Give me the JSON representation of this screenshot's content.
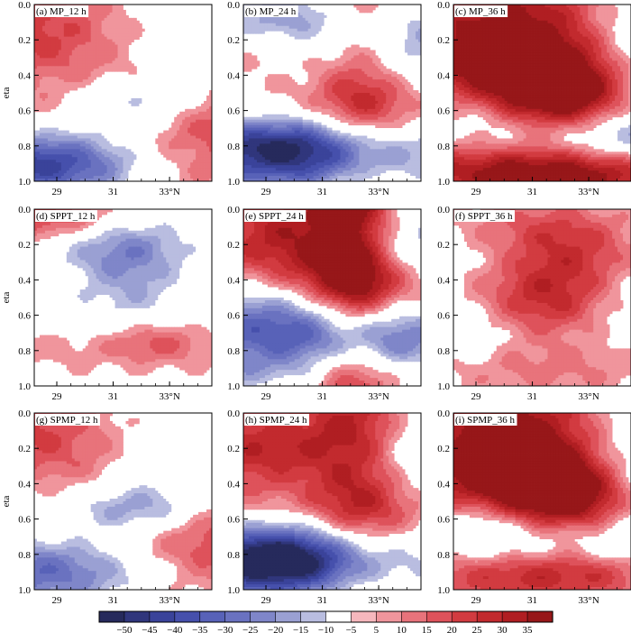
{
  "chart_data": {
    "type": "heatmap",
    "ylabel": "eta",
    "x_ticks": [
      "29",
      "31",
      "33°N"
    ],
    "x_tick_values": [
      29,
      31,
      33
    ],
    "xlim": [
      28.2,
      34.5
    ],
    "y_ticks": [
      "0.0",
      "0.2",
      "0.4",
      "0.6",
      "0.8",
      "1.0"
    ],
    "y_tick_values": [
      0.0,
      0.2,
      0.4,
      0.6,
      0.8,
      1.0
    ],
    "ylim": [
      0.0,
      1.0
    ],
    "y_inverted": true,
    "colorbar": {
      "levels": [
        -50,
        -45,
        -40,
        -35,
        -30,
        -25,
        -20,
        -15,
        -10,
        -5,
        5,
        10,
        15,
        20,
        25,
        30,
        35
      ],
      "labels": [
        "−50",
        "−45",
        "−40",
        "−35",
        "−30",
        "−25",
        "−20",
        "−15",
        "−10",
        "−5",
        "5",
        "10",
        "15",
        "20",
        "25",
        "30",
        "35"
      ],
      "colors": [
        "#262a5c",
        "#30367c",
        "#3a439a",
        "#4650ac",
        "#5862b8",
        "#6a72c0",
        "#7f86c9",
        "#9aa0d3",
        "#b9bde0",
        "#ffffff",
        "#f6b7bd",
        "#f0959c",
        "#e8737b",
        "#de525b",
        "#d23b40",
        "#c22a2e",
        "#b01e22",
        "#971719"
      ]
    },
    "panels": [
      {
        "label": "(a)  MP_12  h",
        "blobs": [
          [
            0.13,
            0.13,
            1.6,
            0.06,
            30
          ],
          [
            0.5,
            0.4,
            1.2,
            0.04,
            15
          ],
          [
            0.05,
            0.63,
            2.3,
            0.04,
            30
          ],
          [
            0.04,
            0.79,
            1.6,
            0.06,
            -35
          ],
          [
            0.58,
            0.17,
            1.3,
            0.07,
            -18
          ],
          [
            0.5,
            0.57,
            1.0,
            0.035,
            -20
          ],
          [
            0.63,
            0.52,
            0.8,
            0.05,
            -12
          ],
          [
            0.86,
            0.84,
            1.5,
            0.07,
            22
          ],
          [
            0.26,
            0.93,
            1.6,
            0.04,
            -10
          ],
          [
            0.07,
            0.93,
            1.0,
            0.03,
            -12
          ]
        ]
      },
      {
        "label": "(b)  MP_24  h",
        "blobs": [
          [
            0.35,
            0.08,
            1.5,
            0.04,
            -25
          ],
          [
            0.66,
            0.23,
            0.6,
            0.25,
            25
          ],
          [
            0.18,
            0.25,
            1.7,
            0.05,
            15
          ],
          [
            0.8,
            0.3,
            1.4,
            0.05,
            -25
          ],
          [
            0.06,
            0.65,
            1.7,
            0.04,
            35
          ],
          [
            0.55,
            0.72,
            2.0,
            0.05,
            -45
          ],
          [
            0.16,
            0.8,
            1.6,
            0.05,
            -35
          ],
          [
            0.8,
            0.58,
            1.3,
            0.05,
            20
          ],
          [
            0.36,
            0.88,
            1.7,
            0.04,
            -25
          ],
          [
            0.86,
            0.78,
            1.3,
            0.05,
            25
          ],
          [
            0.06,
            0.9,
            1.0,
            0.03,
            15
          ]
        ]
      },
      {
        "label": "(c)  MP_36  h",
        "blobs": [
          [
            0.18,
            0.22,
            1.6,
            0.12,
            30
          ],
          [
            0.64,
            0.18,
            1.1,
            0.09,
            28
          ],
          [
            0.45,
            0.48,
            1.5,
            0.06,
            25
          ],
          [
            0.76,
            0.5,
            0.9,
            0.06,
            35
          ],
          [
            0.87,
            0.2,
            1.1,
            0.08,
            -30
          ],
          [
            0.96,
            0.45,
            0.8,
            0.06,
            -25
          ],
          [
            0.1,
            0.6,
            0.8,
            0.05,
            -25
          ],
          [
            0.72,
            0.75,
            1.7,
            0.04,
            -40
          ],
          [
            0.3,
            0.85,
            1.7,
            0.05,
            25
          ],
          [
            0.7,
            0.96,
            1.8,
            0.03,
            30
          ]
        ]
      },
      {
        "label": "(d)  SPPT_12  h",
        "blobs": [
          [
            0.05,
            0.05,
            1.0,
            0.03,
            25
          ],
          [
            0.46,
            0.2,
            1.0,
            0.04,
            -15
          ],
          [
            0.53,
            0.3,
            0.6,
            0.05,
            -12
          ],
          [
            0.6,
            0.66,
            1.0,
            0.05,
            -15
          ],
          [
            0.57,
            0.78,
            1.6,
            0.035,
            15
          ],
          [
            0.68,
            0.72,
            0.6,
            0.03,
            15
          ]
        ]
      },
      {
        "label": "(e)  SPPT_24  h",
        "blobs": [
          [
            0.36,
            0.06,
            1.3,
            0.05,
            25
          ],
          [
            0.62,
            0.2,
            0.5,
            0.3,
            30
          ],
          [
            0.22,
            0.25,
            1.2,
            0.05,
            15
          ],
          [
            0.85,
            0.18,
            1.0,
            0.05,
            -25
          ],
          [
            0.55,
            0.42,
            1.0,
            0.05,
            20
          ],
          [
            0.8,
            0.5,
            1.0,
            0.05,
            15
          ],
          [
            0.2,
            0.54,
            1.0,
            0.04,
            -15
          ],
          [
            0.36,
            0.75,
            1.8,
            0.05,
            -35
          ],
          [
            0.75,
            0.65,
            0.8,
            0.05,
            -20
          ],
          [
            0.45,
            0.92,
            1.5,
            0.03,
            15
          ],
          [
            0.06,
            0.93,
            1.0,
            0.02,
            -12
          ]
        ]
      },
      {
        "label": "(f)  SPPT_36  h",
        "blobs": [
          [
            0.48,
            0.15,
            1.1,
            0.05,
            20
          ],
          [
            0.72,
            0.32,
            1.0,
            0.05,
            20
          ],
          [
            0.3,
            0.27,
            1.0,
            0.04,
            -15
          ],
          [
            0.58,
            0.55,
            1.4,
            0.06,
            30
          ],
          [
            0.95,
            0.48,
            0.8,
            0.06,
            -25
          ],
          [
            0.25,
            0.7,
            1.3,
            0.04,
            15
          ],
          [
            0.3,
            0.76,
            1.6,
            0.04,
            -30
          ],
          [
            0.45,
            0.86,
            1.7,
            0.04,
            20
          ],
          [
            0.1,
            0.6,
            0.8,
            0.04,
            -15
          ]
        ]
      },
      {
        "label": "(g)  SPMP_12  h",
        "blobs": [
          [
            0.14,
            0.12,
            1.6,
            0.06,
            30
          ],
          [
            0.48,
            0.4,
            1.2,
            0.04,
            15
          ],
          [
            0.05,
            0.66,
            2.3,
            0.04,
            28
          ],
          [
            0.04,
            0.78,
            1.6,
            0.06,
            -35
          ],
          [
            0.6,
            0.17,
            1.4,
            0.07,
            -20
          ],
          [
            0.5,
            0.56,
            1.0,
            0.035,
            -22
          ],
          [
            0.66,
            0.5,
            0.8,
            0.05,
            -15
          ],
          [
            0.88,
            0.8,
            1.4,
            0.07,
            22
          ],
          [
            0.3,
            0.93,
            1.6,
            0.04,
            -10
          ]
        ]
      },
      {
        "label": "(h)  SPMP_24  h",
        "blobs": [
          [
            0.3,
            0.12,
            1.4,
            0.05,
            25
          ],
          [
            0.65,
            0.25,
            0.6,
            0.25,
            25
          ],
          [
            0.2,
            0.3,
            1.8,
            0.05,
            20
          ],
          [
            0.82,
            0.25,
            1.4,
            0.06,
            -30
          ],
          [
            0.06,
            0.63,
            1.7,
            0.04,
            35
          ],
          [
            0.52,
            0.7,
            2.0,
            0.05,
            -45
          ],
          [
            0.16,
            0.78,
            1.6,
            0.05,
            -35
          ],
          [
            0.78,
            0.55,
            1.3,
            0.05,
            20
          ],
          [
            0.35,
            0.88,
            1.6,
            0.04,
            -25
          ],
          [
            0.87,
            0.76,
            1.3,
            0.05,
            28
          ]
        ]
      },
      {
        "label": "(i)  SPMP_36  h",
        "blobs": [
          [
            0.2,
            0.2,
            1.7,
            0.12,
            30
          ],
          [
            0.62,
            0.18,
            1.1,
            0.09,
            28
          ],
          [
            0.45,
            0.47,
            1.5,
            0.06,
            25
          ],
          [
            0.75,
            0.5,
            0.9,
            0.06,
            35
          ],
          [
            0.88,
            0.18,
            1.1,
            0.08,
            -30
          ],
          [
            0.96,
            0.42,
            0.8,
            0.06,
            -25
          ],
          [
            0.15,
            0.62,
            0.9,
            0.05,
            -25
          ],
          [
            0.62,
            0.74,
            1.8,
            0.045,
            -42
          ],
          [
            0.3,
            0.86,
            1.7,
            0.05,
            25
          ],
          [
            0.75,
            0.9,
            1.6,
            0.03,
            20
          ]
        ]
      }
    ]
  }
}
